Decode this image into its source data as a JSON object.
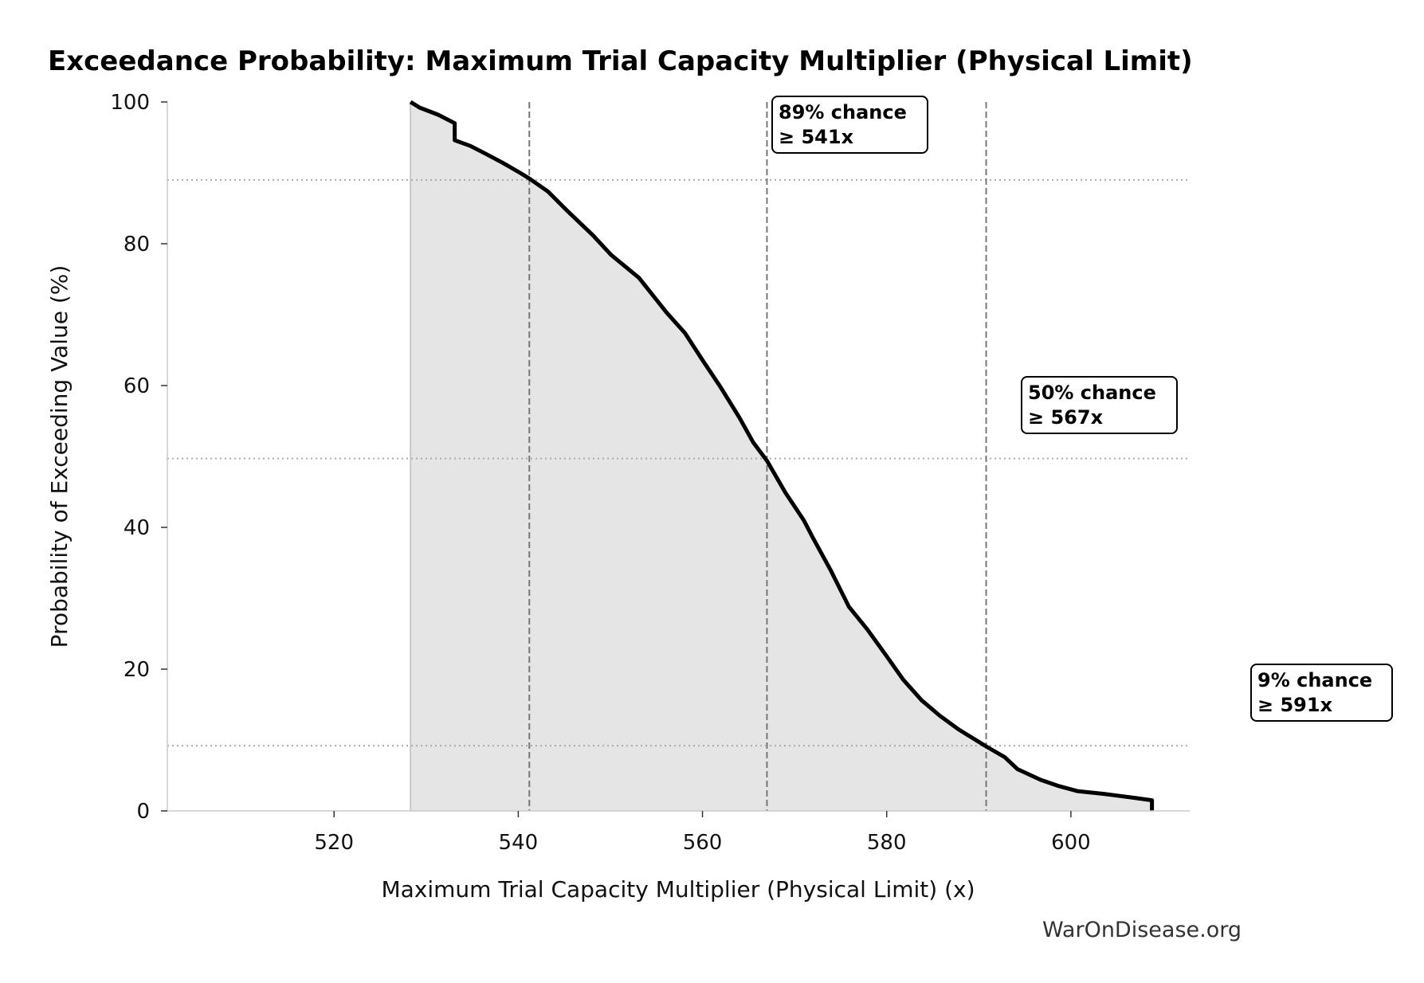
{
  "chart_data": {
    "type": "area",
    "title": "Exceedance Probability: Maximum Trial Capacity Multiplier (Physical Limit)",
    "xlabel": "Maximum Trial Capacity Multiplier (Physical Limit) (x)",
    "ylabel": "Probability of Exceeding Value (%)",
    "xlim": [
      501.9,
      612.9
    ],
    "ylim": [
      0,
      100
    ],
    "xticks": [
      "520",
      "540",
      "560",
      "580",
      "600"
    ],
    "yticks": [
      "0",
      "20",
      "40",
      "60",
      "80",
      "100"
    ],
    "grid": false,
    "line_color": "#000000",
    "fill_color": "#e5e5e5",
    "series": [
      {
        "x": [
          528.3,
          529.3,
          531.3,
          533.1,
          533.1,
          534.8,
          536.3,
          538.2,
          540.2,
          541.2,
          543.2,
          545.2,
          548.1,
          550.1,
          553.1,
          556.1,
          558.1,
          560.0,
          562.0,
          564.0,
          565.5,
          567.0,
          569.0,
          571.0,
          572.0,
          573.9,
          575.9,
          577.9,
          579.9,
          581.8,
          583.8,
          585.8,
          587.8,
          589.8,
          590.8,
          592.8,
          594.2,
          596.7,
          598.7,
          600.7,
          603.6,
          606.6,
          608.8,
          608.8
        ],
        "y": [
          100,
          99.2,
          98.2,
          97.0,
          94.6,
          93.8,
          92.8,
          91.5,
          90.0,
          89.2,
          87.4,
          84.8,
          81.2,
          78.4,
          75.2,
          70.3,
          67.4,
          63.6,
          59.7,
          55.5,
          52.0,
          49.4,
          44.9,
          41.0,
          38.5,
          34.0,
          28.8,
          25.6,
          22.0,
          18.5,
          15.6,
          13.4,
          11.5,
          9.9,
          9.1,
          7.6,
          5.9,
          4.4,
          3.5,
          2.8,
          2.4,
          1.9,
          1.5,
          0
        ]
      }
    ],
    "reference_lines": [
      {
        "x": 541.2,
        "y": 89,
        "label_line1": "89% chance",
        "label_line2": "≥ 541x"
      },
      {
        "x": 567.0,
        "y": 49.7,
        "label_line1": "50% chance",
        "label_line2": "≥ 567x"
      },
      {
        "x": 590.8,
        "y": 9.2,
        "label_line1": "9% chance",
        "label_line2": "≥ 591x"
      }
    ]
  },
  "watermark": "WarOnDisease.org"
}
